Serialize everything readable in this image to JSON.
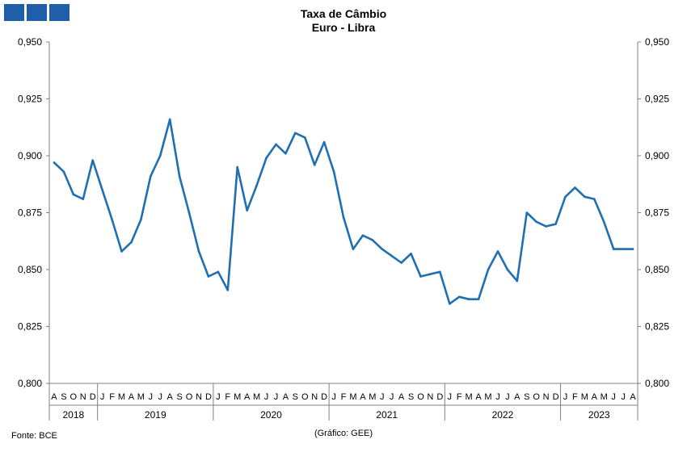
{
  "title": "Taxa de Câmbio",
  "subtitle": "Euro - Libra",
  "source": "Fonte: BCE",
  "credit": "(Gráfico: GEE)",
  "colors": {
    "line": "#1f6fb2",
    "axis": "#808080",
    "logo": "#1f5ea8"
  },
  "chart_data": {
    "type": "line",
    "title": "Taxa de Câmbio",
    "subtitle": "Euro - Libra",
    "ylim": [
      0.8,
      0.95
    ],
    "yticks": [
      "0,800",
      "0,825",
      "0,850",
      "0,875",
      "0,900",
      "0,925",
      "0,950"
    ],
    "grid": false,
    "months": [
      "A",
      "S",
      "O",
      "N",
      "D",
      "J",
      "F",
      "M",
      "A",
      "M",
      "J",
      "J",
      "A",
      "S",
      "O",
      "N",
      "D",
      "J",
      "F",
      "M",
      "A",
      "M",
      "J",
      "J",
      "A",
      "S",
      "O",
      "N",
      "D",
      "J",
      "F",
      "M",
      "A",
      "M",
      "J",
      "J",
      "A",
      "S",
      "O",
      "N",
      "D",
      "J",
      "F",
      "M",
      "A",
      "M",
      "J",
      "J",
      "A",
      "S",
      "O",
      "N",
      "D",
      "J",
      "F",
      "M",
      "A",
      "M",
      "J",
      "J",
      "A"
    ],
    "years": [
      {
        "label": "2018",
        "months": 5
      },
      {
        "label": "2019",
        "months": 12
      },
      {
        "label": "2020",
        "months": 12
      },
      {
        "label": "2021",
        "months": 12
      },
      {
        "label": "2022",
        "months": 12
      },
      {
        "label": "2023",
        "months": 8
      }
    ],
    "series": [
      {
        "values": [
          0.897,
          0.893,
          0.883,
          0.881,
          0.898,
          0.885,
          0.872,
          0.858,
          0.862,
          0.872,
          0.891,
          0.9,
          0.916,
          0.891,
          0.875,
          0.858,
          0.847,
          0.849,
          0.841,
          0.895,
          0.876,
          0.887,
          0.899,
          0.905,
          0.901,
          0.91,
          0.908,
          0.896,
          0.906,
          0.893,
          0.873,
          0.859,
          0.865,
          0.863,
          0.859,
          0.856,
          0.853,
          0.857,
          0.847,
          0.848,
          0.849,
          0.835,
          0.838,
          0.837,
          0.837,
          0.85,
          0.858,
          0.85,
          0.845,
          0.875,
          0.871,
          0.869,
          0.87,
          0.882,
          0.886,
          0.882,
          0.881,
          0.871,
          0.859,
          0.859,
          0.859
        ]
      }
    ]
  }
}
